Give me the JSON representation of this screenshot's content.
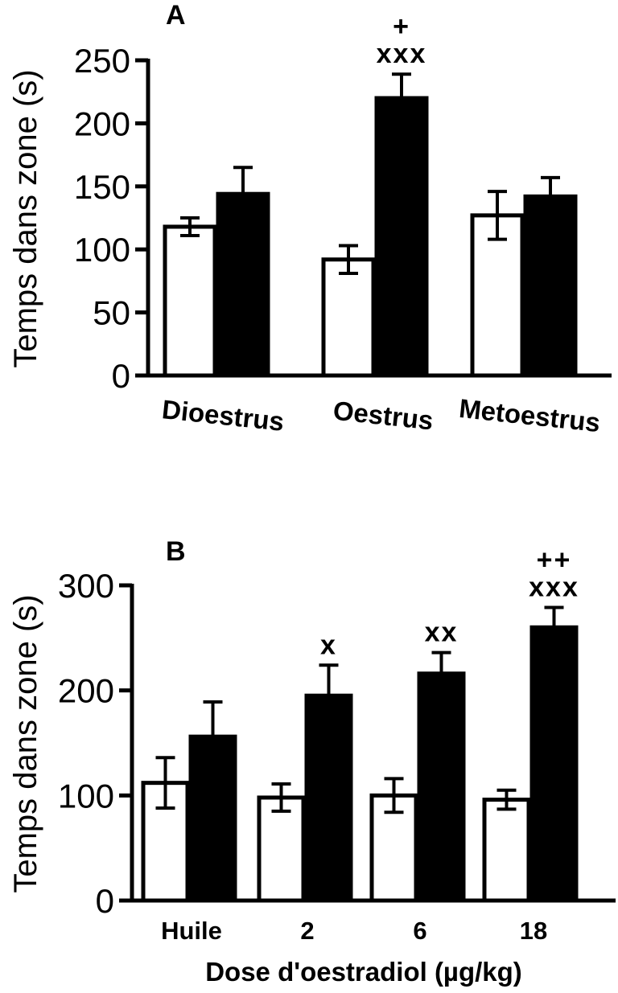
{
  "chart_data": [
    {
      "type": "bar",
      "panel": "A",
      "ylabel": "Temps dans zone (s)",
      "ylim": [
        0,
        250
      ],
      "yticks": [
        0,
        50,
        100,
        150,
        200,
        250
      ],
      "categories": [
        "Dioestrus",
        "Oestrus",
        "Metoestrus"
      ],
      "series": [
        {
          "color": "#ffffff",
          "values": [
            118,
            92,
            127
          ],
          "errors": [
            7,
            11,
            19
          ]
        },
        {
          "color": "#000000",
          "values": [
            144,
            220,
            142
          ],
          "errors": [
            21,
            19,
            15
          ]
        }
      ],
      "annotations": [
        {
          "category": 1,
          "series": 1,
          "lines": [
            "+",
            "xxx"
          ]
        }
      ]
    },
    {
      "type": "bar",
      "panel": "B",
      "ylabel": "Temps dans zone (s)",
      "xlabel": "Dose d'oestradiol  (µg/kg)",
      "ylim": [
        0,
        300
      ],
      "yticks": [
        0,
        100,
        200,
        300
      ],
      "categories": [
        "Huile",
        "2",
        "6",
        "18"
      ],
      "series": [
        {
          "color": "#ffffff",
          "values": [
            112,
            98,
            100,
            96
          ],
          "errors": [
            24,
            13,
            16,
            9
          ]
        },
        {
          "color": "#000000",
          "values": [
            156,
            195,
            216,
            260
          ],
          "errors": [
            33,
            29,
            20,
            19
          ]
        }
      ],
      "annotations": [
        {
          "category": 1,
          "series": 1,
          "lines": [
            "x"
          ]
        },
        {
          "category": 2,
          "series": 1,
          "lines": [
            "xx"
          ]
        },
        {
          "category": 3,
          "series": 1,
          "lines": [
            "++",
            "xxx"
          ]
        }
      ]
    }
  ]
}
